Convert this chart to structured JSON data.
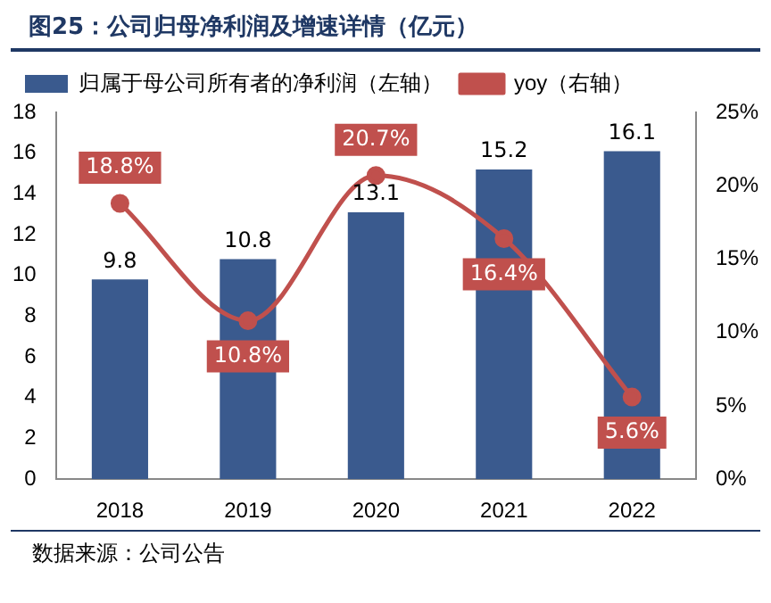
{
  "chart_data": {
    "type": "bar",
    "title": "图25：公司归母净利润及增速详情（亿元）",
    "categories": [
      "2018",
      "2019",
      "2020",
      "2021",
      "2022"
    ],
    "series": [
      {
        "name": "归属于母公司所有者的净利润（左轴）",
        "color": "#3a5a8e",
        "values": [
          9.8,
          10.8,
          13.1,
          15.2,
          16.1
        ]
      },
      {
        "name": "yoy（右轴）",
        "type": "line",
        "axis": "y2",
        "color": "#c0504d",
        "values": [
          18.8,
          10.8,
          20.7,
          16.4,
          5.6
        ],
        "value_labels": [
          "18.8%",
          "10.8%",
          "20.7%",
          "16.4%",
          "5.6%"
        ]
      }
    ],
    "ylim": [
      0,
      18
    ],
    "yticks": [
      0,
      2,
      4,
      6,
      8,
      10,
      12,
      14,
      16,
      18
    ],
    "y2lim": [
      0,
      25
    ],
    "y2ticks": [
      {
        "value": 0,
        "label": "0%"
      },
      {
        "value": 5,
        "label": "5%"
      },
      {
        "value": 10,
        "label": "10%"
      },
      {
        "value": 15,
        "label": "15%"
      },
      {
        "value": 20,
        "label": "20%"
      },
      {
        "value": 25,
        "label": "25%"
      }
    ],
    "data_labels": true,
    "legend": "top",
    "marker": "circle",
    "grid": false,
    "annotations": [
      "数据来源：公司公告"
    ]
  }
}
